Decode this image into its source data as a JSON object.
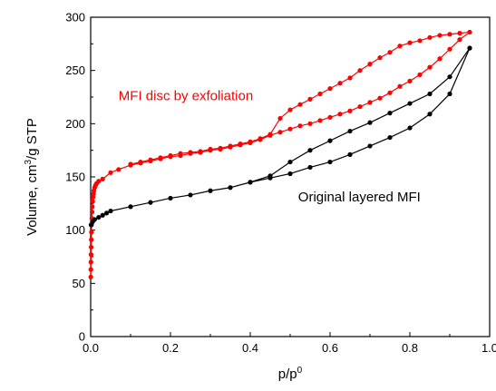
{
  "chart_data": {
    "type": "line",
    "xlabel": "p/p",
    "xlabel_sup": "0",
    "ylabel_prefix": "Volume, cm",
    "ylabel_sup": "3",
    "ylabel_suffix": "/g STP",
    "xlim": [
      0.0,
      1.0
    ],
    "ylim": [
      0,
      300
    ],
    "xticks": [
      0.0,
      0.2,
      0.4,
      0.6,
      0.8,
      1.0
    ],
    "xtick_labels": [
      "0.0",
      "0.2",
      "0.4",
      "0.6",
      "0.8",
      "1.0"
    ],
    "yticks": [
      0,
      50,
      100,
      150,
      200,
      250,
      300
    ],
    "ytick_labels": [
      "0",
      "50",
      "100",
      "150",
      "200",
      "250",
      "300"
    ],
    "grid": false,
    "series": [
      {
        "name": "MFI disc by exfoliation",
        "color": "#ff0000",
        "adsorption": [
          [
            0.0003,
            56
          ],
          [
            0.0005,
            63
          ],
          [
            0.0007,
            70
          ],
          [
            0.001,
            77
          ],
          [
            0.0013,
            84
          ],
          [
            0.0016,
            91
          ],
          [
            0.002,
            98
          ],
          [
            0.0025,
            105
          ],
          [
            0.003,
            111
          ],
          [
            0.0035,
            117
          ],
          [
            0.004,
            122
          ],
          [
            0.005,
            127
          ],
          [
            0.006,
            131
          ],
          [
            0.007,
            134
          ],
          [
            0.008,
            137
          ],
          [
            0.01,
            140
          ],
          [
            0.012,
            142
          ],
          [
            0.015,
            144
          ],
          [
            0.02,
            146
          ],
          [
            0.03,
            148
          ],
          [
            0.05,
            154
          ],
          [
            0.07,
            157
          ],
          [
            0.1,
            161
          ],
          [
            0.125,
            163
          ],
          [
            0.15,
            165
          ],
          [
            0.175,
            167
          ],
          [
            0.2,
            169
          ],
          [
            0.225,
            170
          ],
          [
            0.25,
            172
          ],
          [
            0.275,
            173
          ],
          [
            0.3,
            175
          ],
          [
            0.325,
            176
          ],
          [
            0.35,
            178
          ],
          [
            0.375,
            180
          ],
          [
            0.4,
            182
          ],
          [
            0.425,
            185
          ],
          [
            0.45,
            189
          ],
          [
            0.475,
            192
          ],
          [
            0.5,
            195
          ],
          [
            0.525,
            198
          ],
          [
            0.55,
            200
          ],
          [
            0.575,
            203
          ],
          [
            0.6,
            206
          ],
          [
            0.625,
            209
          ],
          [
            0.65,
            212
          ],
          [
            0.675,
            216
          ],
          [
            0.7,
            220
          ],
          [
            0.725,
            224
          ],
          [
            0.75,
            229
          ],
          [
            0.775,
            235
          ],
          [
            0.8,
            240
          ],
          [
            0.825,
            246
          ],
          [
            0.85,
            253
          ],
          [
            0.875,
            261
          ],
          [
            0.9,
            270
          ],
          [
            0.925,
            279
          ],
          [
            0.95,
            286
          ]
        ],
        "desorption": [
          [
            0.95,
            286
          ],
          [
            0.925,
            285
          ],
          [
            0.9,
            284
          ],
          [
            0.875,
            283
          ],
          [
            0.85,
            281
          ],
          [
            0.825,
            278
          ],
          [
            0.8,
            276
          ],
          [
            0.775,
            273
          ],
          [
            0.75,
            267
          ],
          [
            0.725,
            262
          ],
          [
            0.7,
            256
          ],
          [
            0.675,
            250
          ],
          [
            0.65,
            243
          ],
          [
            0.625,
            238
          ],
          [
            0.6,
            233
          ],
          [
            0.575,
            228
          ],
          [
            0.55,
            223
          ],
          [
            0.525,
            218
          ],
          [
            0.5,
            213
          ],
          [
            0.475,
            205
          ],
          [
            0.45,
            190
          ],
          [
            0.425,
            186
          ],
          [
            0.4,
            183
          ],
          [
            0.375,
            181
          ],
          [
            0.35,
            179
          ],
          [
            0.325,
            177
          ],
          [
            0.3,
            176
          ],
          [
            0.275,
            174
          ],
          [
            0.25,
            173
          ],
          [
            0.225,
            172
          ],
          [
            0.2,
            170
          ],
          [
            0.175,
            168
          ],
          [
            0.15,
            166
          ],
          [
            0.125,
            164
          ],
          [
            0.1,
            162
          ]
        ]
      },
      {
        "name": "Original layered MFI",
        "color": "#000000",
        "adsorption": [
          [
            0.001,
            105
          ],
          [
            0.005,
            108
          ],
          [
            0.01,
            110
          ],
          [
            0.02,
            112
          ],
          [
            0.03,
            114
          ],
          [
            0.04,
            116
          ],
          [
            0.05,
            118
          ],
          [
            0.1,
            122
          ],
          [
            0.15,
            126
          ],
          [
            0.2,
            130
          ],
          [
            0.25,
            133
          ],
          [
            0.3,
            137
          ],
          [
            0.35,
            140
          ],
          [
            0.4,
            145
          ],
          [
            0.45,
            149
          ],
          [
            0.5,
            153
          ],
          [
            0.55,
            159
          ],
          [
            0.6,
            164
          ],
          [
            0.65,
            171
          ],
          [
            0.7,
            179
          ],
          [
            0.75,
            187
          ],
          [
            0.8,
            196
          ],
          [
            0.85,
            209
          ],
          [
            0.9,
            228
          ],
          [
            0.95,
            271
          ]
        ],
        "desorption": [
          [
            0.95,
            271
          ],
          [
            0.9,
            244
          ],
          [
            0.85,
            228
          ],
          [
            0.8,
            219
          ],
          [
            0.75,
            210
          ],
          [
            0.7,
            201
          ],
          [
            0.65,
            193
          ],
          [
            0.6,
            184
          ],
          [
            0.55,
            175
          ],
          [
            0.5,
            164
          ],
          [
            0.45,
            151
          ],
          [
            0.4,
            145
          ]
        ]
      }
    ],
    "annotations": [
      {
        "text": "MFI disc by exfoliation",
        "x": 0.07,
        "y": 222,
        "color": "#ff0000"
      },
      {
        "text": "Original layered MFI",
        "x": 0.52,
        "y": 127,
        "color": "#000000"
      }
    ]
  }
}
